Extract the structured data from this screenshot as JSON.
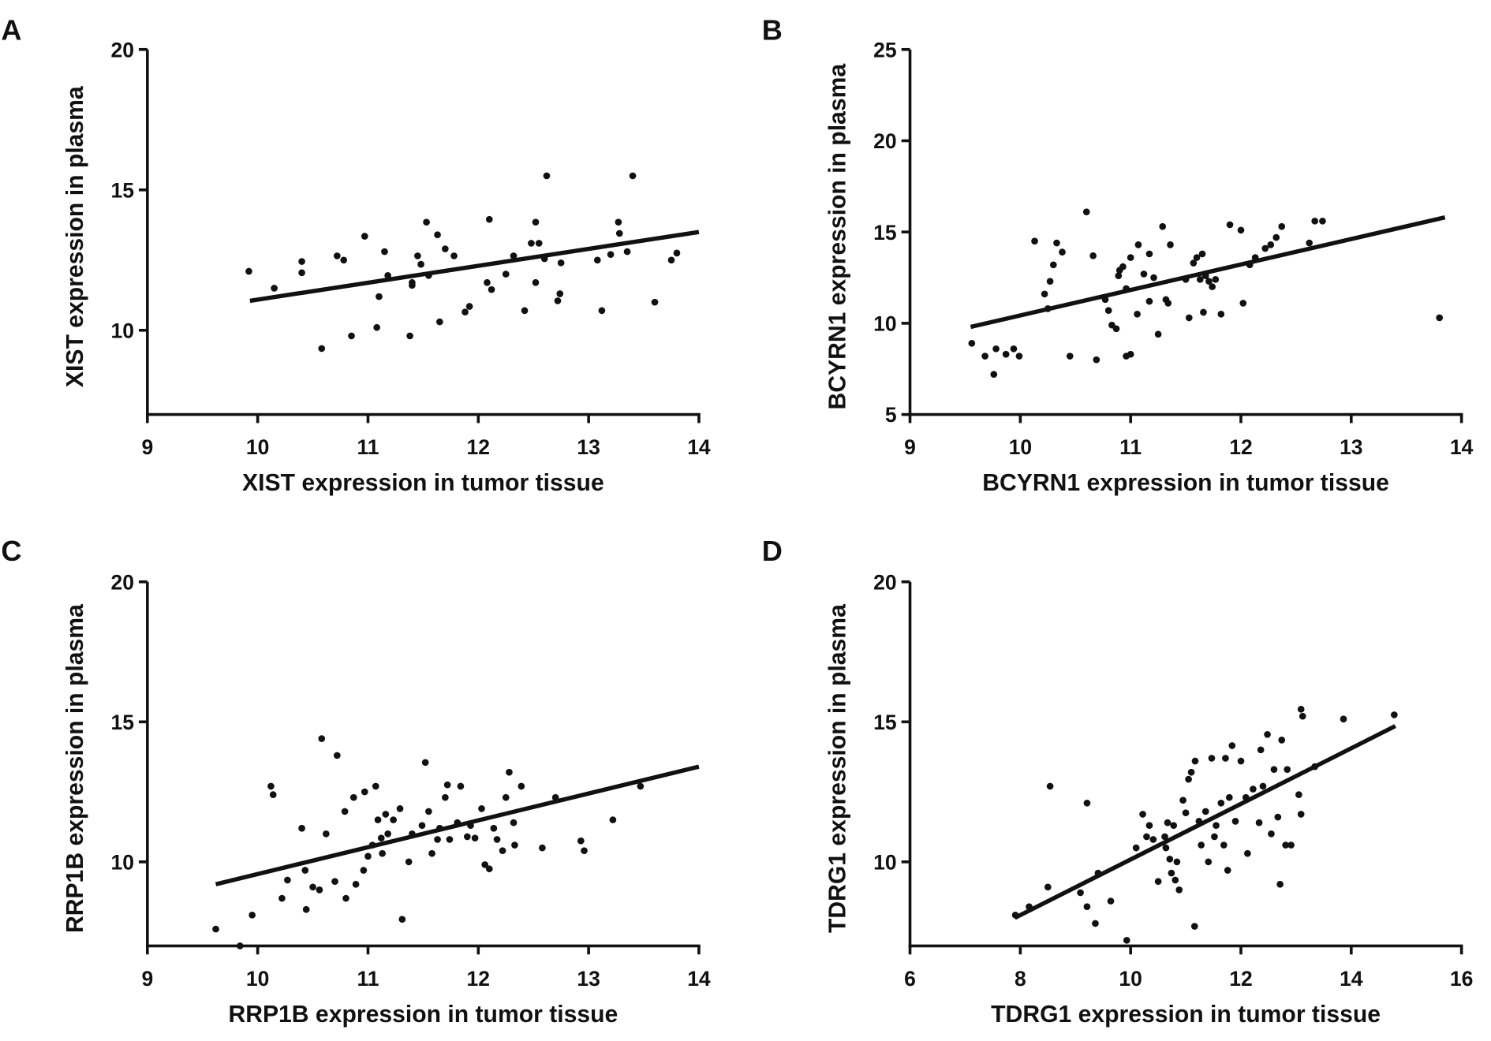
{
  "chart_data": [
    {
      "panel": "A",
      "type": "scatter",
      "xlabel": "XIST expression  in tumor tissue",
      "ylabel": "XIST expression in plasma",
      "xlim": [
        9,
        14
      ],
      "ylim": [
        7,
        20
      ],
      "xticks": [
        9,
        10,
        11,
        12,
        13,
        14
      ],
      "yticks": [
        10,
        15,
        20
      ],
      "grid": false,
      "fit_line": [
        [
          9.93,
          11.05
        ],
        [
          14,
          13.5
        ]
      ],
      "points": [
        [
          9.92,
          12.1
        ],
        [
          10.15,
          11.5
        ],
        [
          10.4,
          12.45
        ],
        [
          10.4,
          12.05
        ],
        [
          10.58,
          9.35
        ],
        [
          10.72,
          12.65
        ],
        [
          10.78,
          12.5
        ],
        [
          10.85,
          9.8
        ],
        [
          10.97,
          13.35
        ],
        [
          11.08,
          10.1
        ],
        [
          11.1,
          11.2
        ],
        [
          11.15,
          12.8
        ],
        [
          11.18,
          11.95
        ],
        [
          11.38,
          9.8
        ],
        [
          11.4,
          11.6
        ],
        [
          11.4,
          11.7
        ],
        [
          11.45,
          12.65
        ],
        [
          11.48,
          12.35
        ],
        [
          11.53,
          13.85
        ],
        [
          11.55,
          11.95
        ],
        [
          11.63,
          13.4
        ],
        [
          11.65,
          10.3
        ],
        [
          11.7,
          12.9
        ],
        [
          11.78,
          12.65
        ],
        [
          11.88,
          10.65
        ],
        [
          11.92,
          10.85
        ],
        [
          12.1,
          13.95
        ],
        [
          12.08,
          11.7
        ],
        [
          12.12,
          11.45
        ],
        [
          12.25,
          12.0
        ],
        [
          12.32,
          12.65
        ],
        [
          12.42,
          10.7
        ],
        [
          12.48,
          13.1
        ],
        [
          12.52,
          13.85
        ],
        [
          12.52,
          11.7
        ],
        [
          12.55,
          13.1
        ],
        [
          12.6,
          12.55
        ],
        [
          12.62,
          15.5
        ],
        [
          12.72,
          11.05
        ],
        [
          12.74,
          11.3
        ],
        [
          12.75,
          12.4
        ],
        [
          13.08,
          12.5
        ],
        [
          13.12,
          10.7
        ],
        [
          13.2,
          12.7
        ],
        [
          13.27,
          13.85
        ],
        [
          13.28,
          13.45
        ],
        [
          13.35,
          12.8
        ],
        [
          13.4,
          15.5
        ],
        [
          13.6,
          11.0
        ],
        [
          13.75,
          12.5
        ],
        [
          13.8,
          12.75
        ]
      ]
    },
    {
      "panel": "B",
      "type": "scatter",
      "xlabel": "BCYRN1  expression  in tumor tissue",
      "ylabel": "BCYRN1  expression  in plasma",
      "xlim": [
        9,
        14
      ],
      "ylim": [
        5,
        25
      ],
      "xticks": [
        9,
        10,
        11,
        12,
        13,
        14
      ],
      "yticks": [
        5,
        10,
        15,
        20,
        25
      ],
      "grid": false,
      "fit_line": [
        [
          9.55,
          9.8
        ],
        [
          13.85,
          15.8
        ]
      ],
      "points": [
        [
          9.56,
          8.9
        ],
        [
          9.68,
          8.2
        ],
        [
          9.76,
          7.2
        ],
        [
          9.78,
          8.6
        ],
        [
          9.87,
          8.3
        ],
        [
          9.94,
          8.6
        ],
        [
          9.99,
          8.2
        ],
        [
          10.13,
          14.5
        ],
        [
          10.22,
          11.6
        ],
        [
          10.25,
          10.8
        ],
        [
          10.27,
          12.3
        ],
        [
          10.3,
          13.2
        ],
        [
          10.33,
          14.4
        ],
        [
          10.38,
          13.9
        ],
        [
          10.45,
          8.2
        ],
        [
          10.6,
          16.1
        ],
        [
          10.66,
          13.7
        ],
        [
          10.69,
          8.0
        ],
        [
          10.77,
          11.3
        ],
        [
          10.8,
          10.7
        ],
        [
          10.83,
          9.9
        ],
        [
          10.87,
          9.7
        ],
        [
          10.89,
          12.6
        ],
        [
          10.9,
          12.9
        ],
        [
          10.93,
          13.1
        ],
        [
          10.96,
          11.9
        ],
        [
          10.96,
          8.2
        ],
        [
          11.0,
          8.3
        ],
        [
          11.0,
          13.6
        ],
        [
          11.07,
          14.3
        ],
        [
          11.06,
          10.5
        ],
        [
          11.12,
          12.7
        ],
        [
          11.17,
          11.2
        ],
        [
          11.17,
          13.8
        ],
        [
          11.21,
          12.5
        ],
        [
          11.25,
          9.4
        ],
        [
          11.29,
          15.3
        ],
        [
          11.32,
          11.3
        ],
        [
          11.36,
          14.3
        ],
        [
          11.34,
          11.1
        ],
        [
          11.5,
          12.4
        ],
        [
          11.53,
          10.3
        ],
        [
          11.57,
          13.3
        ],
        [
          11.6,
          13.6
        ],
        [
          11.63,
          12.4
        ],
        [
          11.65,
          13.8
        ],
        [
          11.66,
          10.6
        ],
        [
          11.68,
          12.6
        ],
        [
          11.71,
          12.3
        ],
        [
          11.74,
          12.0
        ],
        [
          11.77,
          12.4
        ],
        [
          11.82,
          10.5
        ],
        [
          11.9,
          15.4
        ],
        [
          12.0,
          15.1
        ],
        [
          12.02,
          11.1
        ],
        [
          12.08,
          13.2
        ],
        [
          12.13,
          13.6
        ],
        [
          12.22,
          14.1
        ],
        [
          12.27,
          14.3
        ],
        [
          12.32,
          14.7
        ],
        [
          12.37,
          15.3
        ],
        [
          12.62,
          14.4
        ],
        [
          12.67,
          15.6
        ],
        [
          12.74,
          15.6
        ],
        [
          13.8,
          10.3
        ]
      ]
    },
    {
      "panel": "C",
      "type": "scatter",
      "xlabel": "RRP1B expression  in tumor tissue",
      "ylabel": "RRP1B expression in plasma",
      "xlim": [
        9,
        14
      ],
      "ylim": [
        7,
        20
      ],
      "xticks": [
        9,
        10,
        11,
        12,
        13,
        14
      ],
      "yticks": [
        10,
        15,
        20
      ],
      "grid": false,
      "fit_line": [
        [
          9.62,
          9.2
        ],
        [
          14,
          13.4
        ]
      ],
      "points": [
        [
          9.62,
          7.6
        ],
        [
          9.84,
          7.0
        ],
        [
          9.95,
          8.1
        ],
        [
          10.12,
          12.7
        ],
        [
          10.14,
          12.4
        ],
        [
          10.22,
          8.7
        ],
        [
          10.27,
          9.35
        ],
        [
          10.4,
          11.2
        ],
        [
          10.43,
          9.7
        ],
        [
          10.44,
          8.3
        ],
        [
          10.5,
          9.1
        ],
        [
          10.56,
          9.0
        ],
        [
          10.58,
          14.4
        ],
        [
          10.62,
          11.0
        ],
        [
          10.72,
          13.8
        ],
        [
          10.7,
          9.3
        ],
        [
          10.79,
          11.8
        ],
        [
          10.8,
          8.7
        ],
        [
          10.87,
          12.3
        ],
        [
          10.89,
          9.2
        ],
        [
          10.96,
          9.7
        ],
        [
          10.97,
          12.5
        ],
        [
          11.0,
          10.2
        ],
        [
          11.04,
          10.6
        ],
        [
          11.07,
          12.7
        ],
        [
          11.09,
          11.5
        ],
        [
          11.12,
          10.85
        ],
        [
          11.13,
          10.3
        ],
        [
          11.16,
          11.7
        ],
        [
          11.18,
          11.0
        ],
        [
          11.23,
          11.5
        ],
        [
          11.29,
          11.9
        ],
        [
          11.31,
          7.95
        ],
        [
          11.37,
          10.0
        ],
        [
          11.4,
          11.0
        ],
        [
          11.49,
          11.3
        ],
        [
          11.52,
          13.55
        ],
        [
          11.55,
          11.8
        ],
        [
          11.58,
          10.3
        ],
        [
          11.63,
          10.8
        ],
        [
          11.65,
          11.2
        ],
        [
          11.7,
          12.3
        ],
        [
          11.72,
          12.75
        ],
        [
          11.74,
          10.8
        ],
        [
          11.81,
          11.4
        ],
        [
          11.84,
          12.7
        ],
        [
          11.9,
          10.9
        ],
        [
          11.93,
          11.3
        ],
        [
          11.97,
          10.85
        ],
        [
          12.03,
          11.9
        ],
        [
          12.06,
          9.9
        ],
        [
          12.1,
          9.75
        ],
        [
          12.14,
          11.2
        ],
        [
          12.17,
          10.8
        ],
        [
          12.22,
          10.4
        ],
        [
          12.25,
          12.3
        ],
        [
          12.28,
          13.2
        ],
        [
          12.32,
          11.4
        ],
        [
          12.33,
          10.6
        ],
        [
          12.39,
          12.7
        ],
        [
          12.58,
          10.5
        ],
        [
          12.7,
          12.3
        ],
        [
          12.93,
          10.75
        ],
        [
          12.96,
          10.4
        ],
        [
          13.22,
          11.5
        ],
        [
          13.47,
          12.7
        ]
      ]
    },
    {
      "panel": "D",
      "type": "scatter",
      "xlabel": "TDRG1 expression  in tumor tissue",
      "ylabel": "TDRG1 expression in plasma",
      "xlim": [
        6,
        16
      ],
      "ylim": [
        7,
        20
      ],
      "xticks": [
        6,
        8,
        10,
        12,
        14,
        16
      ],
      "yticks": [
        10,
        15,
        20
      ],
      "grid": false,
      "fit_line": [
        [
          7.9,
          8.0
        ],
        [
          14.8,
          14.85
        ]
      ],
      "points": [
        [
          7.91,
          8.1
        ],
        [
          8.16,
          8.4
        ],
        [
          8.5,
          9.1
        ],
        [
          8.54,
          12.7
        ],
        [
          9.09,
          8.9
        ],
        [
          9.21,
          12.1
        ],
        [
          9.21,
          8.4
        ],
        [
          9.36,
          7.8
        ],
        [
          9.41,
          9.6
        ],
        [
          9.64,
          8.6
        ],
        [
          9.93,
          7.2
        ],
        [
          10.1,
          10.5
        ],
        [
          10.22,
          11.7
        ],
        [
          10.29,
          10.9
        ],
        [
          10.34,
          11.3
        ],
        [
          10.41,
          10.8
        ],
        [
          10.5,
          9.3
        ],
        [
          10.62,
          10.9
        ],
        [
          10.64,
          10.5
        ],
        [
          10.67,
          11.4
        ],
        [
          10.71,
          10.1
        ],
        [
          10.74,
          9.6
        ],
        [
          10.78,
          11.3
        ],
        [
          10.81,
          9.35
        ],
        [
          10.84,
          10.0
        ],
        [
          10.88,
          9.0
        ],
        [
          10.95,
          12.2
        ],
        [
          11.0,
          11.75
        ],
        [
          11.05,
          12.95
        ],
        [
          11.1,
          13.2
        ],
        [
          11.16,
          7.7
        ],
        [
          11.17,
          13.6
        ],
        [
          11.24,
          11.45
        ],
        [
          11.28,
          10.6
        ],
        [
          11.36,
          11.8
        ],
        [
          11.41,
          10.0
        ],
        [
          11.47,
          13.7
        ],
        [
          11.52,
          10.9
        ],
        [
          11.55,
          11.3
        ],
        [
          11.64,
          12.1
        ],
        [
          11.69,
          10.6
        ],
        [
          11.72,
          13.7
        ],
        [
          11.76,
          9.7
        ],
        [
          11.79,
          12.3
        ],
        [
          11.84,
          14.15
        ],
        [
          11.9,
          11.45
        ],
        [
          12.0,
          13.6
        ],
        [
          12.09,
          12.3
        ],
        [
          12.12,
          10.3
        ],
        [
          12.22,
          12.6
        ],
        [
          12.33,
          11.4
        ],
        [
          12.36,
          14.0
        ],
        [
          12.4,
          12.7
        ],
        [
          12.48,
          14.55
        ],
        [
          12.55,
          11.0
        ],
        [
          12.6,
          13.3
        ],
        [
          12.67,
          11.6
        ],
        [
          12.71,
          9.2
        ],
        [
          12.74,
          14.35
        ],
        [
          12.81,
          10.6
        ],
        [
          12.84,
          13.3
        ],
        [
          12.91,
          10.6
        ],
        [
          13.05,
          12.4
        ],
        [
          13.09,
          11.7
        ],
        [
          13.09,
          15.45
        ],
        [
          13.12,
          15.2
        ],
        [
          13.34,
          13.4
        ],
        [
          13.86,
          15.1
        ],
        [
          14.78,
          15.25
        ]
      ]
    }
  ],
  "colors": {
    "ink": "#111111"
  }
}
